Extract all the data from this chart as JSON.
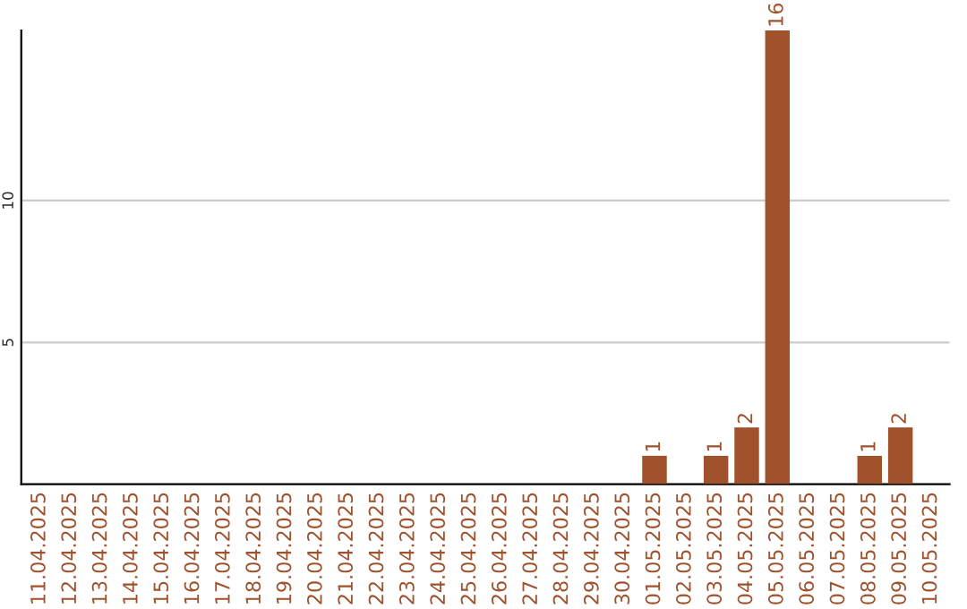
{
  "chart_data": {
    "type": "bar",
    "categories": [
      "11.04.2025",
      "12.04.2025",
      "13.04.2025",
      "14.04.2025",
      "15.04.2025",
      "16.04.2025",
      "17.04.2025",
      "18.04.2025",
      "19.04.2025",
      "20.04.2025",
      "21.04.2025",
      "22.04.2025",
      "23.04.2025",
      "24.04.2025",
      "25.04.2025",
      "26.04.2025",
      "27.04.2025",
      "28.04.2025",
      "29.04.2025",
      "30.04.2025",
      "01.05.2025",
      "02.05.2025",
      "03.05.2025",
      "04.05.2025",
      "05.05.2025",
      "06.05.2025",
      "07.05.2025",
      "08.05.2025",
      "09.05.2025",
      "10.05.2025"
    ],
    "values": [
      0,
      0,
      0,
      0,
      0,
      0,
      0,
      0,
      0,
      0,
      0,
      0,
      0,
      0,
      0,
      0,
      0,
      0,
      0,
      0,
      1,
      0,
      1,
      2,
      16,
      0,
      0,
      1,
      2,
      0
    ],
    "value_labels": [
      null,
      null,
      null,
      null,
      null,
      null,
      null,
      null,
      null,
      null,
      null,
      null,
      null,
      null,
      null,
      null,
      null,
      null,
      null,
      null,
      "1",
      null,
      "1",
      "2",
      "16",
      null,
      null,
      "1",
      "2",
      null
    ],
    "color": "#a0522d",
    "ylim": [
      0,
      16
    ],
    "yticks": [
      5,
      10
    ],
    "grid": "y"
  }
}
